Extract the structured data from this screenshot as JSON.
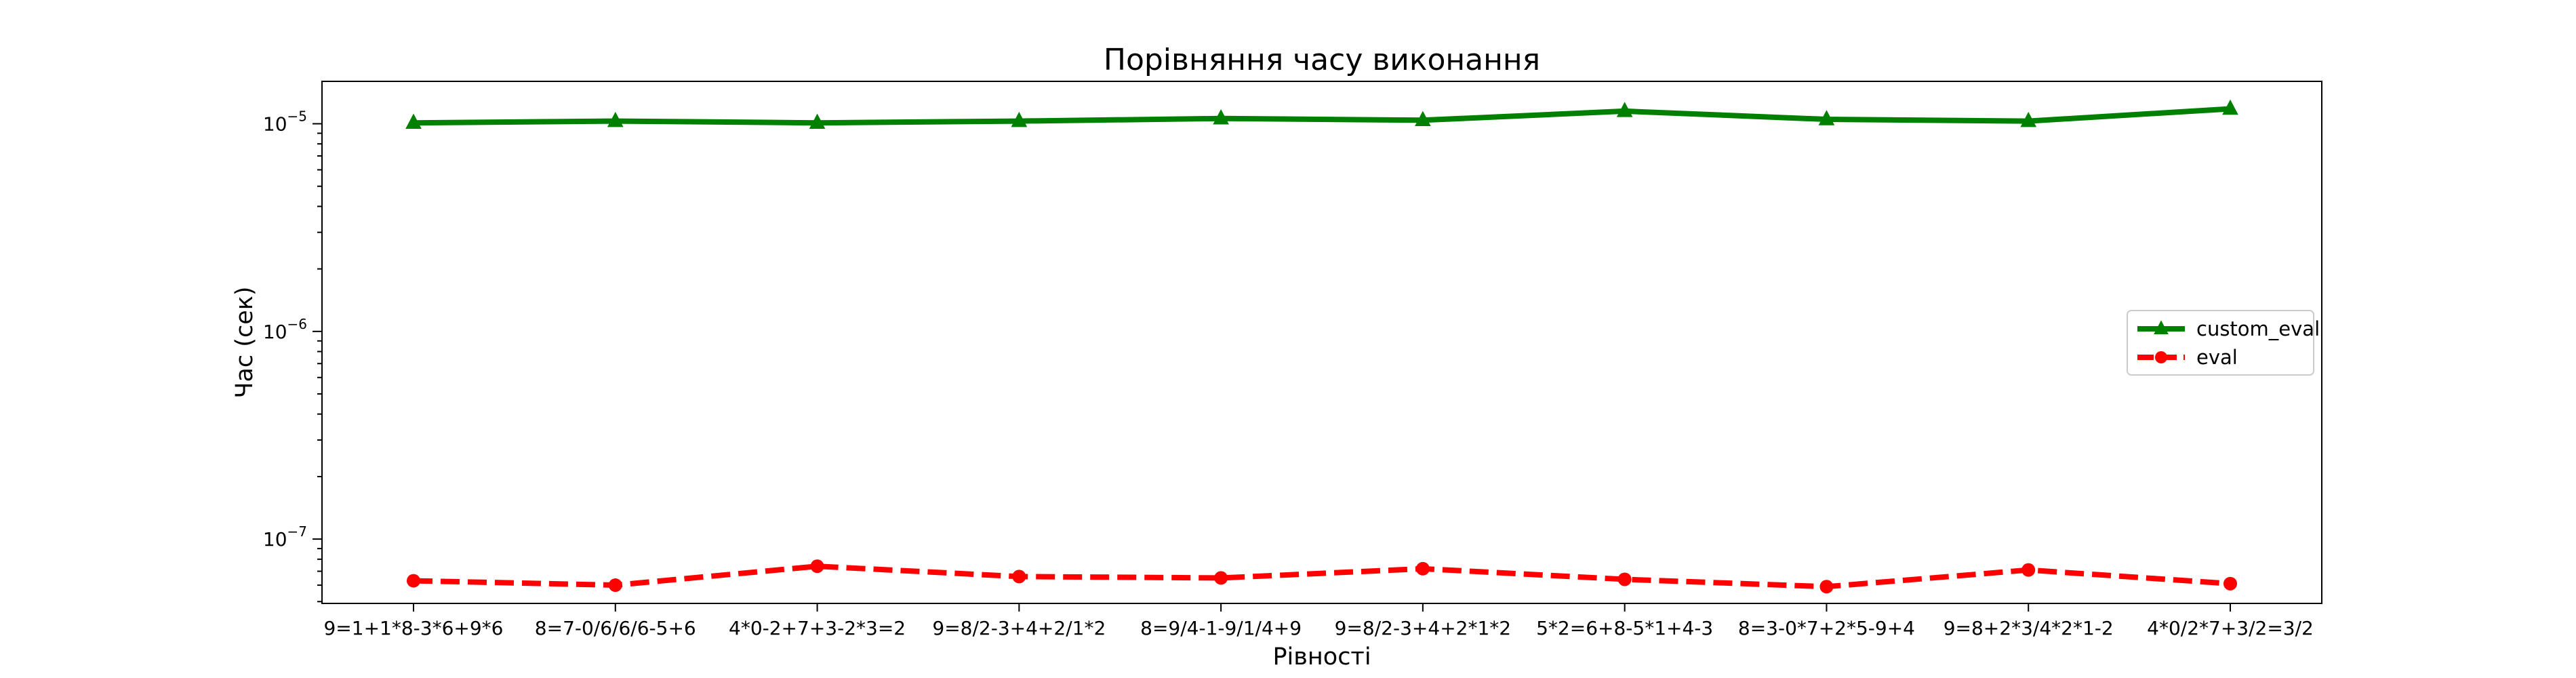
{
  "chart_data": {
    "type": "line",
    "title": "Порівняння часу виконання",
    "xlabel": "Рівності",
    "ylabel": "Час (сек)",
    "yscale": "log",
    "ylim": [
      4.9e-08,
      1.6e-05
    ],
    "grid": false,
    "legend_position": "center-right",
    "categories": [
      "9=1+1*8-3*6+9*6",
      "8=7-0/6/6/6-5+6",
      "4*0-2+7+3-2*3=2",
      "9=8/2-3+4+2/1*2",
      "8=9/4-1-9/1/4+9",
      "9=8/2-3+4+2*1*2",
      "5*2=6+8-5*1+4-3",
      "8=3-0*7+2*5-9+4",
      "9=8+2*3/4*2*1-2",
      "4*0/2*7+3/2=3/2"
    ],
    "y_ticks": [
      {
        "value": 1e-05,
        "base": "10",
        "exp": "−5"
      },
      {
        "value": 1e-06,
        "base": "10",
        "exp": "−6"
      },
      {
        "value": 1e-07,
        "base": "10",
        "exp": "−7"
      }
    ],
    "series": [
      {
        "name": "custom_eval",
        "color": "#008000",
        "line_style": "solid",
        "marker": "triangle",
        "values": [
          1.01e-05,
          1.03e-05,
          1.01e-05,
          1.03e-05,
          1.06e-05,
          1.04e-05,
          1.15e-05,
          1.05e-05,
          1.03e-05,
          1.18e-05
        ]
      },
      {
        "name": "eval",
        "color": "#ff0000",
        "line_style": "dashed",
        "marker": "circle",
        "values": [
          6.3e-08,
          6e-08,
          7.4e-08,
          6.6e-08,
          6.5e-08,
          7.2e-08,
          6.4e-08,
          5.9e-08,
          7.1e-08,
          6.1e-08
        ]
      }
    ]
  }
}
